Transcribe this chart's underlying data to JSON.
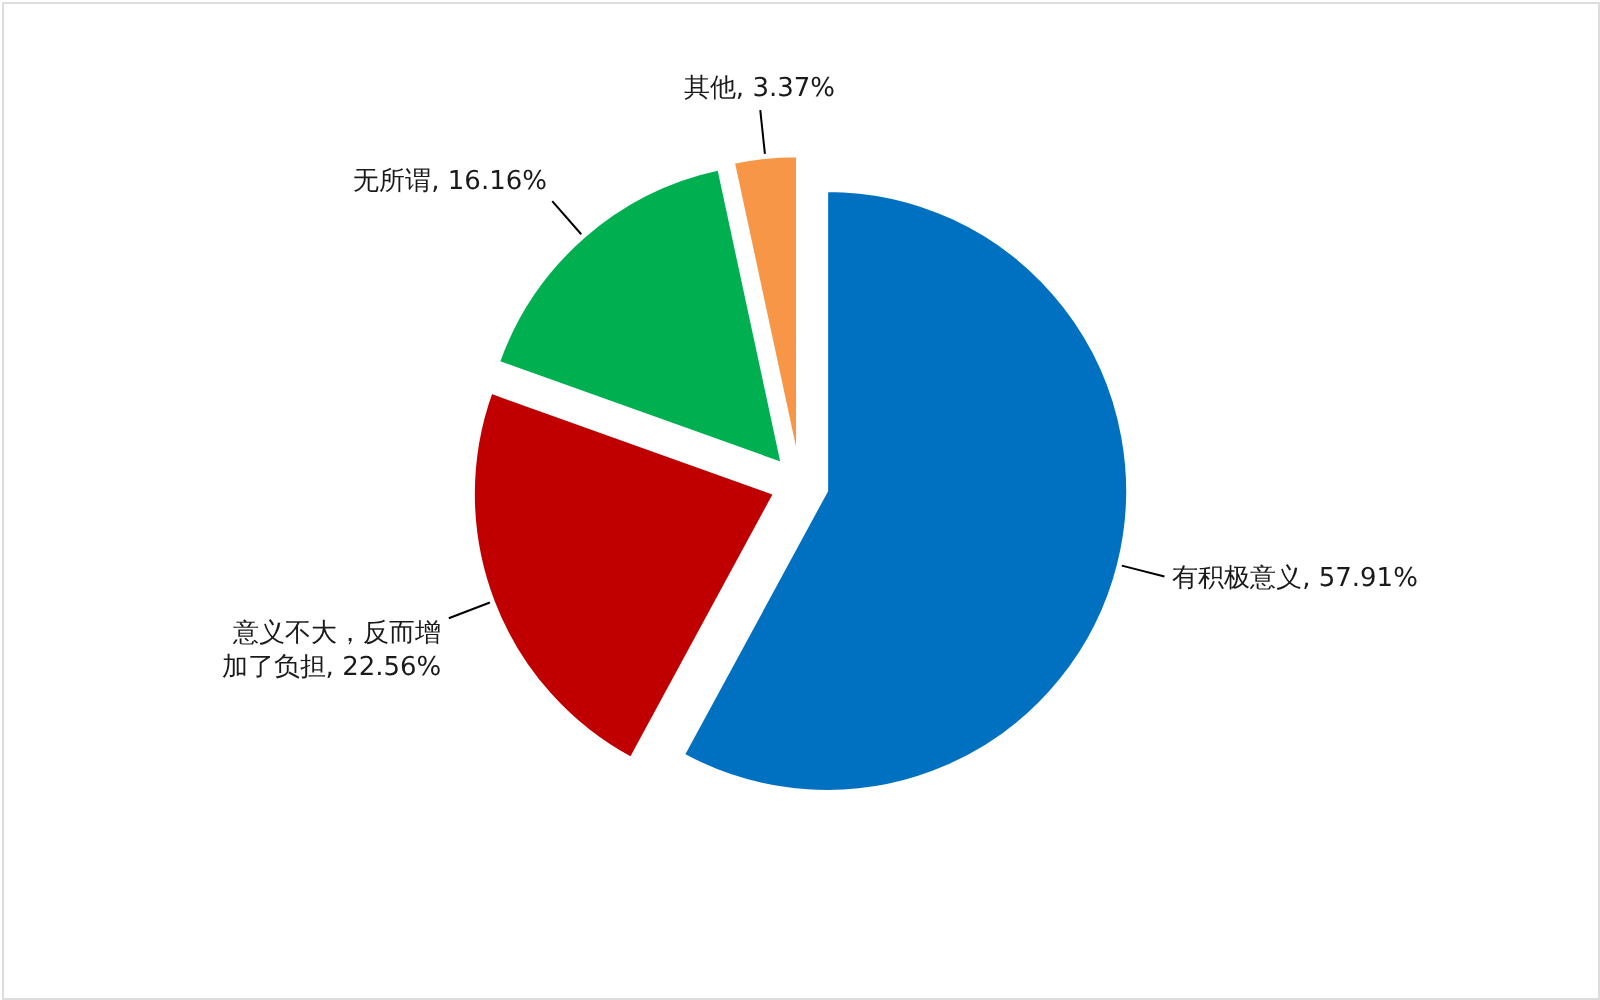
{
  "chart_data": {
    "type": "pie",
    "categories": [
      "有积极意义",
      "意义不大，反而增加了负担",
      "无所谓",
      "其他"
    ],
    "values": [
      57.91,
      22.56,
      16.16,
      3.37
    ],
    "colors": [
      "#0070c0",
      "#c00000",
      "#00b050",
      "#f79646"
    ],
    "value_labels": [
      "57.91%",
      "22.56%",
      "16.16%",
      "3.37%"
    ]
  }
}
